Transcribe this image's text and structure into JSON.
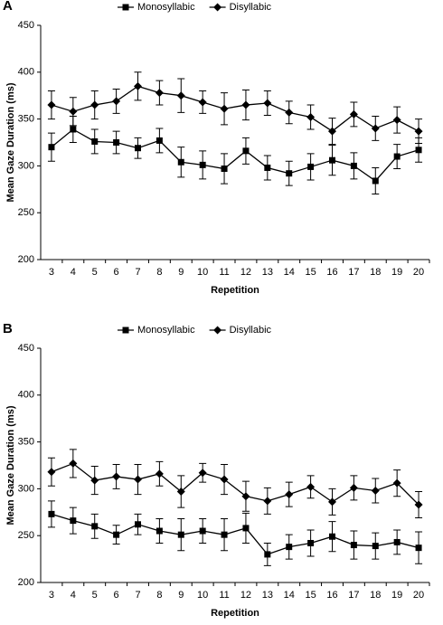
{
  "chart_data": [
    {
      "type": "line",
      "panel": "A",
      "x_label": "Repetition",
      "y_label": "Mean Gaze Duration (ms)",
      "categories": [
        3,
        4,
        5,
        6,
        7,
        8,
        9,
        10,
        11,
        12,
        13,
        14,
        15,
        16,
        17,
        18,
        19,
        20
      ],
      "ylim": [
        200,
        450
      ],
      "yticks": [
        200,
        250,
        300,
        350,
        400,
        450
      ],
      "grid": false,
      "legend": "top",
      "series": [
        {
          "name": "Monosyllabic",
          "color": "#000000",
          "marker": "square",
          "values": [
            320,
            339,
            326,
            325,
            319,
            327,
            304,
            301,
            297,
            316,
            298,
            292,
            299,
            306,
            300,
            284,
            310,
            317
          ],
          "errors": [
            15,
            14,
            13,
            12,
            11,
            13,
            16,
            15,
            16,
            14,
            13,
            13,
            14,
            16,
            14,
            14,
            13,
            13
          ]
        },
        {
          "name": "Disyllabic",
          "color": "#000000",
          "marker": "diamond",
          "values": [
            365,
            358,
            365,
            369,
            385,
            378,
            375,
            368,
            361,
            365,
            367,
            357,
            352,
            337,
            355,
            340,
            349,
            337
          ],
          "errors": [
            15,
            15,
            15,
            13,
            15,
            13,
            18,
            12,
            17,
            16,
            13,
            12,
            13,
            14,
            13,
            13,
            14,
            13
          ]
        }
      ]
    },
    {
      "type": "line",
      "panel": "B",
      "x_label": "Repetition",
      "y_label": "Mean Gaze Duration (ms)",
      "categories": [
        3,
        4,
        5,
        6,
        7,
        8,
        9,
        10,
        11,
        12,
        13,
        14,
        15,
        16,
        17,
        18,
        19,
        20
      ],
      "ylim": [
        200,
        450
      ],
      "yticks": [
        200,
        250,
        300,
        350,
        400,
        450
      ],
      "grid": false,
      "legend": "top",
      "series": [
        {
          "name": "Monosyllabic",
          "color": "#000000",
          "marker": "square",
          "values": [
            273,
            266,
            260,
            251,
            262,
            255,
            251,
            255,
            251,
            258,
            230,
            238,
            242,
            249,
            240,
            239,
            243,
            237
          ],
          "errors": [
            14,
            14,
            13,
            10,
            11,
            13,
            17,
            13,
            17,
            16,
            12,
            13,
            14,
            16,
            15,
            14,
            13,
            17
          ]
        },
        {
          "name": "Disyllabic",
          "color": "#000000",
          "marker": "diamond",
          "values": [
            318,
            327,
            309,
            313,
            310,
            316,
            297,
            317,
            310,
            292,
            287,
            294,
            302,
            286,
            301,
            298,
            306,
            283
          ],
          "errors": [
            15,
            15,
            15,
            13,
            16,
            13,
            17,
            10,
            16,
            16,
            14,
            13,
            12,
            14,
            13,
            13,
            14,
            14
          ]
        }
      ]
    }
  ]
}
